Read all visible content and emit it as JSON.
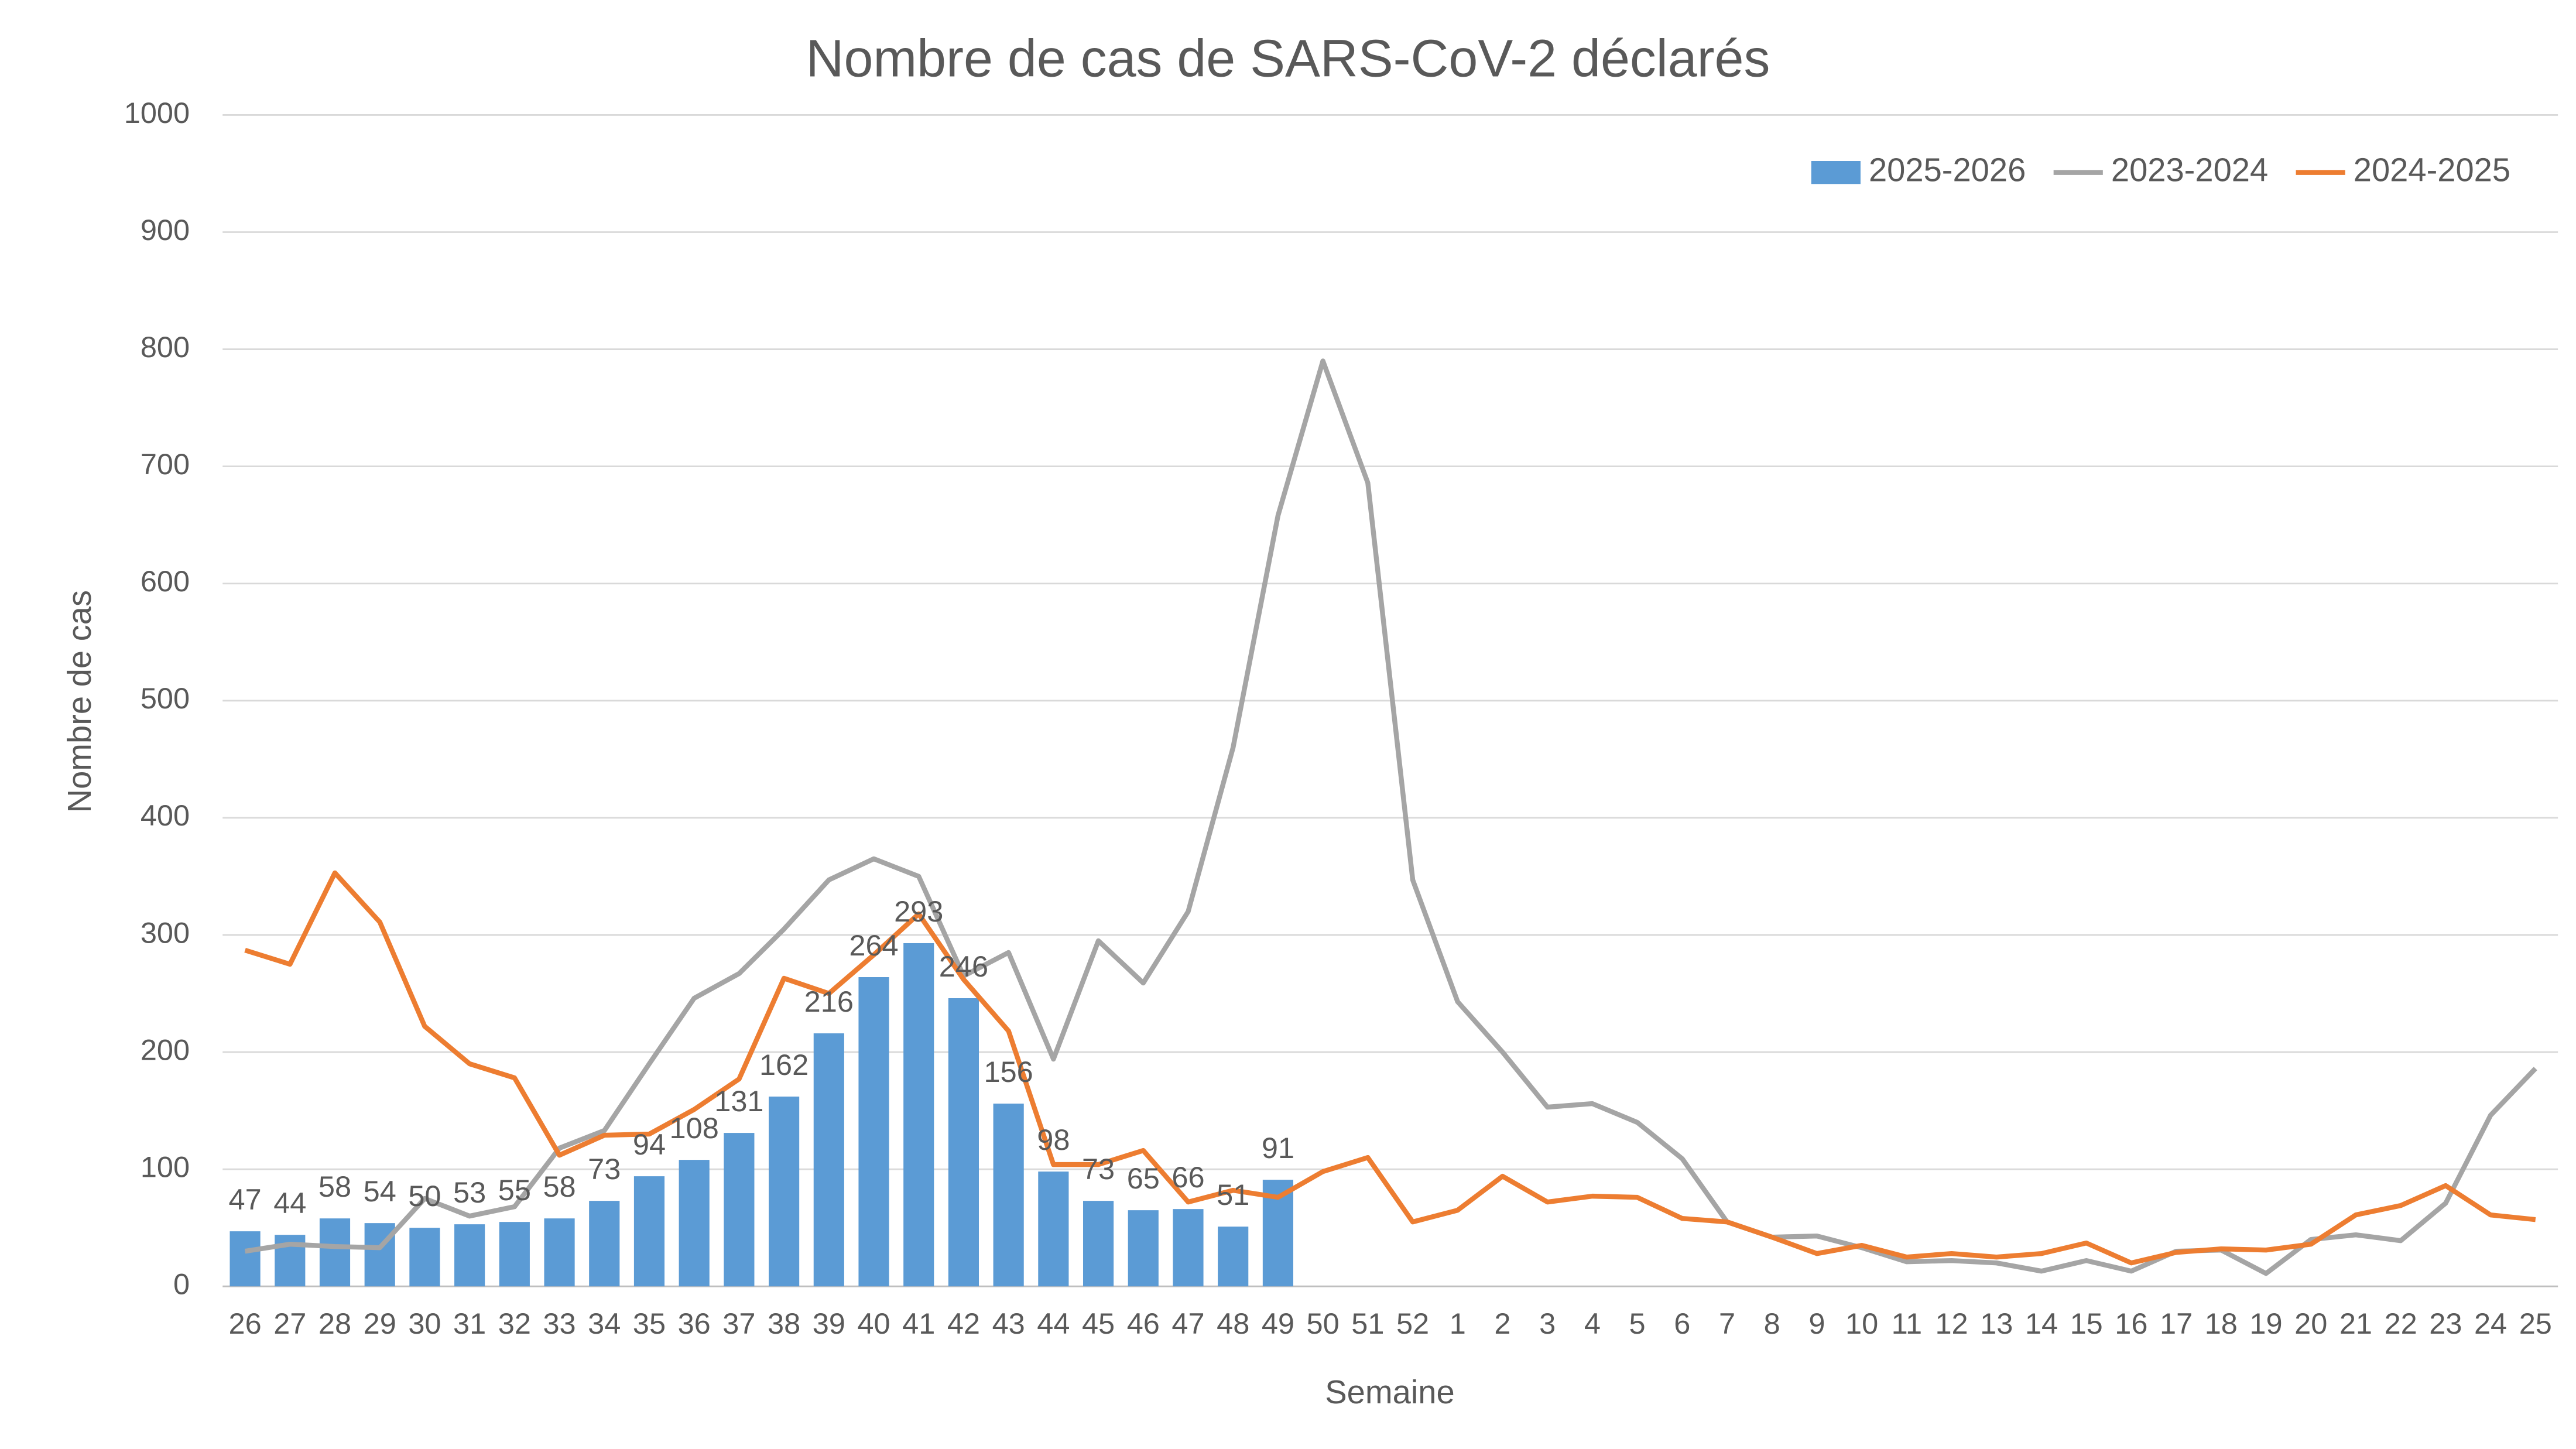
{
  "chart_data": {
    "type": "bar_line",
    "title": "Nombre de cas de SARS-CoV-2 déclarés",
    "x_label": "Semaine",
    "y_label": "Nombre de cas",
    "categories": [
      "26",
      "27",
      "28",
      "29",
      "30",
      "31",
      "32",
      "33",
      "34",
      "35",
      "36",
      "37",
      "38",
      "39",
      "40",
      "41",
      "42",
      "43",
      "44",
      "45",
      "46",
      "47",
      "48",
      "49",
      "50",
      "51",
      "52",
      "1",
      "2",
      "3",
      "4",
      "5",
      "6",
      "7",
      "8",
      "9",
      "10",
      "11",
      "12",
      "13",
      "14",
      "15",
      "16",
      "17",
      "18",
      "19",
      "20",
      "21",
      "22",
      "23",
      "24",
      "25"
    ],
    "series": [
      {
        "name": "2025-2026",
        "type": "bar",
        "color": "#5b9bd5",
        "values": [
          47,
          44,
          58,
          54,
          50,
          53,
          55,
          58,
          73,
          94,
          108,
          131,
          162,
          216,
          264,
          293,
          246,
          156,
          98,
          73,
          65,
          66,
          51,
          91,
          null,
          null,
          null,
          null,
          null,
          null,
          null,
          null,
          null,
          null,
          null,
          null,
          null,
          null,
          null,
          null,
          null,
          null,
          null,
          null,
          null,
          null,
          null,
          null,
          null,
          null,
          null,
          null
        ]
      },
      {
        "name": "2023-2024",
        "type": "line",
        "color": "#a5a5a5",
        "values": [
          30,
          36,
          34,
          33,
          75,
          60,
          68,
          118,
          133,
          190,
          246,
          267,
          305,
          347,
          365,
          350,
          265,
          285,
          194,
          295,
          259,
          320,
          460,
          658,
          790,
          686,
          347,
          243,
          200,
          153,
          156,
          140,
          109,
          55,
          42,
          43,
          33,
          21,
          22,
          20,
          13,
          22,
          13,
          30,
          31,
          11,
          40,
          44,
          39,
          71,
          146,
          186
        ]
      },
      {
        "name": "2024-2025",
        "type": "line",
        "color": "#ed7d31",
        "values": [
          287,
          275,
          353,
          311,
          222,
          190,
          178,
          112,
          129,
          130,
          151,
          177,
          263,
          250,
          283,
          318,
          262,
          218,
          104,
          104,
          116,
          72,
          82,
          76,
          98,
          110,
          55,
          65,
          94,
          72,
          77,
          76,
          58,
          55,
          42,
          28,
          35,
          25,
          28,
          25,
          28,
          37,
          20,
          29,
          32,
          31,
          36,
          61,
          69,
          86,
          61,
          57
        ]
      }
    ],
    "ylim": [
      0,
      1000
    ],
    "yticks": [
      0,
      100,
      200,
      300,
      400,
      500,
      600,
      700,
      800,
      900,
      1000
    ],
    "grid": true,
    "legend": "top-right"
  }
}
